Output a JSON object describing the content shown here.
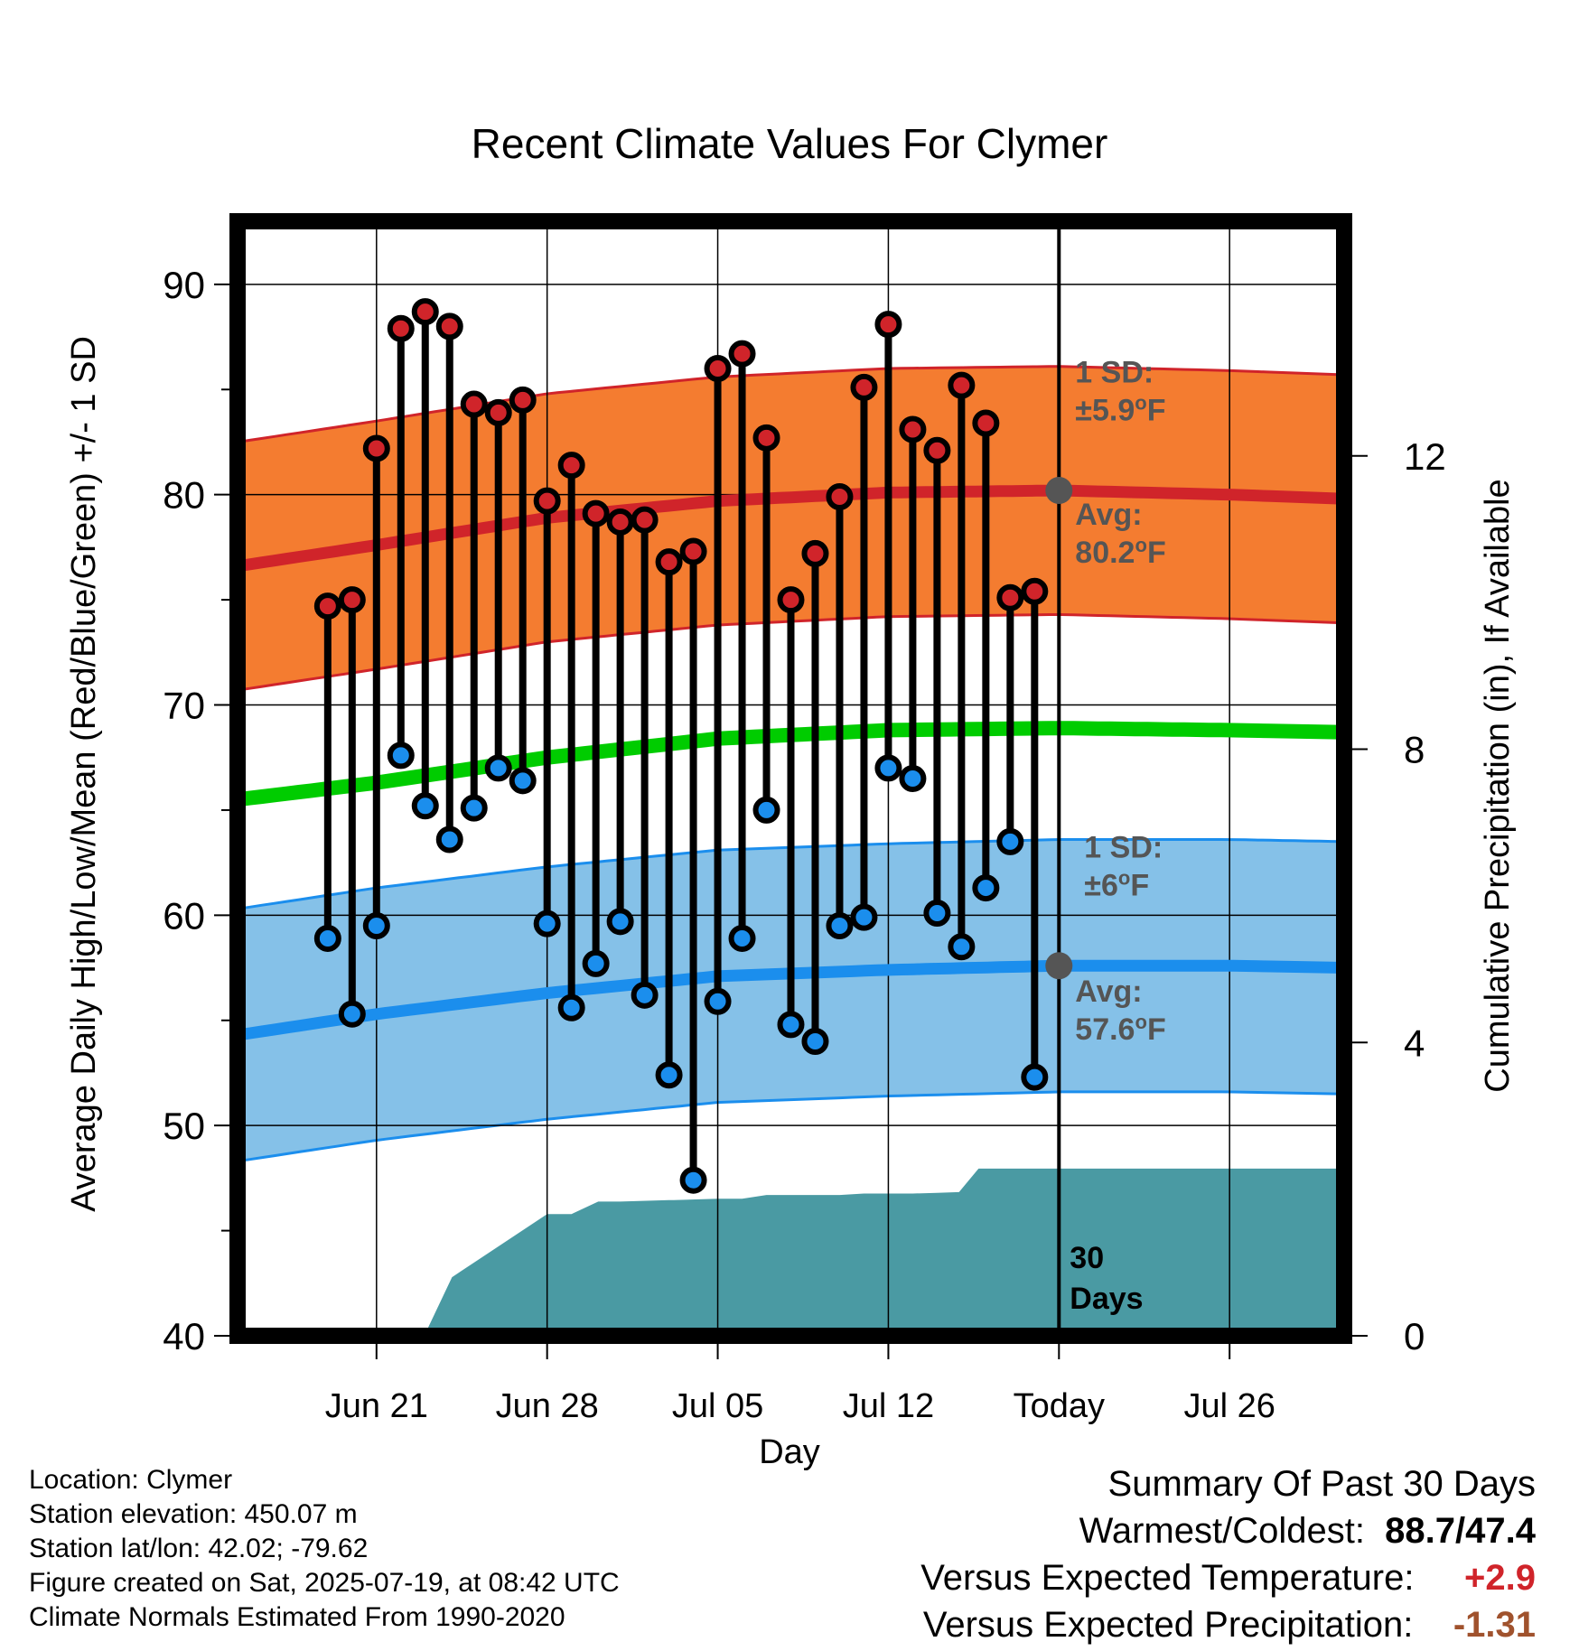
{
  "chart_data": {
    "type": "line",
    "title": "Recent Climate Values For Clymer",
    "xlabel": "Day",
    "ylabel": "Average Daily High/Low/Mean (Red/Blue/Green) +/- 1 SD",
    "y2label": "Cumulative Precipitation (in), If Available",
    "ylim": [
      40,
      93
    ],
    "y_ticks": [
      "40",
      "50",
      "60",
      "70",
      "80",
      "90"
    ],
    "y2lim": [
      0,
      15.2
    ],
    "y2_ticks": [
      "0",
      "4",
      "8",
      "12"
    ],
    "x_range_days": [
      -33.7,
      11.7
    ],
    "x_ticks": [
      {
        "day": -28,
        "label": "Jun 21"
      },
      {
        "day": -21,
        "label": "Jun 28"
      },
      {
        "day": -14,
        "label": "Jul 05"
      },
      {
        "day": -7,
        "label": "Jul 12"
      },
      {
        "day": 0,
        "label": "Today"
      },
      {
        "day": 7,
        "label": "Jul 26"
      }
    ],
    "today_marker": "Today",
    "daily_observations": {
      "day": [
        -30,
        -29,
        -28,
        -27,
        -26,
        -25,
        -24,
        -23,
        -22,
        -21,
        -20,
        -19,
        -18,
        -17,
        -16,
        -15,
        -14,
        -13,
        -12,
        -11,
        -10,
        -9,
        -8,
        -7,
        -6,
        -5,
        -4,
        -3,
        -2,
        -1
      ],
      "high": [
        74.7,
        75.0,
        82.2,
        87.9,
        88.7,
        88.0,
        84.3,
        83.9,
        84.5,
        79.7,
        81.4,
        79.1,
        78.7,
        78.8,
        76.8,
        77.3,
        86.0,
        86.7,
        82.7,
        75.0,
        77.2,
        79.9,
        85.1,
        88.1,
        83.1,
        82.1,
        85.2,
        83.4,
        75.1,
        75.4
      ],
      "low": [
        58.9,
        55.3,
        59.5,
        67.6,
        65.2,
        63.6,
        65.1,
        67.0,
        66.4,
        59.6,
        55.6,
        57.7,
        59.7,
        56.2,
        52.4,
        47.4,
        55.9,
        58.9,
        65.0,
        54.8,
        54.0,
        59.5,
        59.9,
        67.0,
        66.5,
        60.1,
        58.5,
        61.3,
        63.5,
        52.3
      ]
    },
    "normal_high": {
      "day": [
        -33.7,
        -28,
        -21,
        -14,
        -7,
        0,
        7,
        11.7
      ],
      "mean": [
        76.6,
        77.6,
        78.9,
        79.7,
        80.1,
        80.2,
        80.0,
        79.8
      ],
      "sd": 5.9,
      "avg_label": "Avg:",
      "avg_value": "80.2",
      "sd_label": "1 SD:",
      "sd_value": "±5.9"
    },
    "normal_low": {
      "day": [
        -33.7,
        -28,
        -21,
        -14,
        -7,
        0,
        7,
        11.7
      ],
      "mean": [
        54.3,
        55.3,
        56.3,
        57.1,
        57.4,
        57.6,
        57.6,
        57.5
      ],
      "sd": 6.0,
      "avg_label": "Avg:",
      "avg_value": "57.6",
      "sd_label": "1 SD:",
      "sd_value": "±6"
    },
    "normal_mean": {
      "day": [
        -33.7,
        -28,
        -21,
        -14,
        -7,
        0,
        7,
        11.7
      ],
      "mean": [
        65.5,
        66.3,
        67.5,
        68.4,
        68.8,
        68.9,
        68.8,
        68.7
      ]
    },
    "precipitation": {
      "day": [
        -33.7,
        -26.6,
        -25.9,
        -24.9,
        -21.0,
        -20.0,
        -18.9,
        -18.0,
        -16.0,
        -15.8,
        -14.0,
        -13.4,
        -13.0,
        -12.0,
        -11.7,
        -10.0,
        -9.0,
        -8.0,
        -7.0,
        -6.0,
        -5.0,
        -4.1,
        -3.3,
        -3.0,
        -2.0,
        -1.0,
        0.0,
        11.7
      ],
      "cumulative": [
        0.1,
        0.1,
        0.1,
        0.8,
        1.66,
        1.66,
        1.83,
        1.83,
        1.85,
        1.85,
        1.87,
        1.87,
        1.87,
        1.92,
        1.92,
        1.92,
        1.92,
        1.94,
        1.94,
        1.94,
        1.95,
        1.96,
        2.28,
        2.28,
        2.28,
        2.28,
        2.28,
        2.28
      ],
      "label_line1": "30",
      "label_line2": "Days"
    },
    "units": "°F",
    "colors": {
      "high_band": "#f47c30",
      "high_line": "#d0242a",
      "low_band": "#85c1e8",
      "low_line": "#1b8eed",
      "mean_line": "#00cc00",
      "precip": "#4a9aa3",
      "today_avg_dot": "#555555",
      "high_dot": "#d0242a",
      "low_dot": "#1b8eed",
      "stem": "#000000",
      "annotation_text": "#555555"
    },
    "grid": true
  },
  "meta": {
    "location": "Location: Clymer",
    "elevation": "Station elevation: 450.07 m",
    "latlon": "Station lat/lon: 42.02; -79.62",
    "created": "Figure created on Sat, 2025-07-19, at 08:42 UTC",
    "normals": "Climate Normals Estimated From 1990-2020"
  },
  "summary": {
    "heading": "Summary Of Past 30 Days",
    "warm_cold_label": "Warmest/Coldest:",
    "warm_cold_value": "88.7/47.4",
    "temp_label": "Versus Expected Temperature:",
    "temp_value": "+2.9",
    "precip_label": "Versus Expected Precipitation:",
    "precip_value": "-1.31"
  }
}
